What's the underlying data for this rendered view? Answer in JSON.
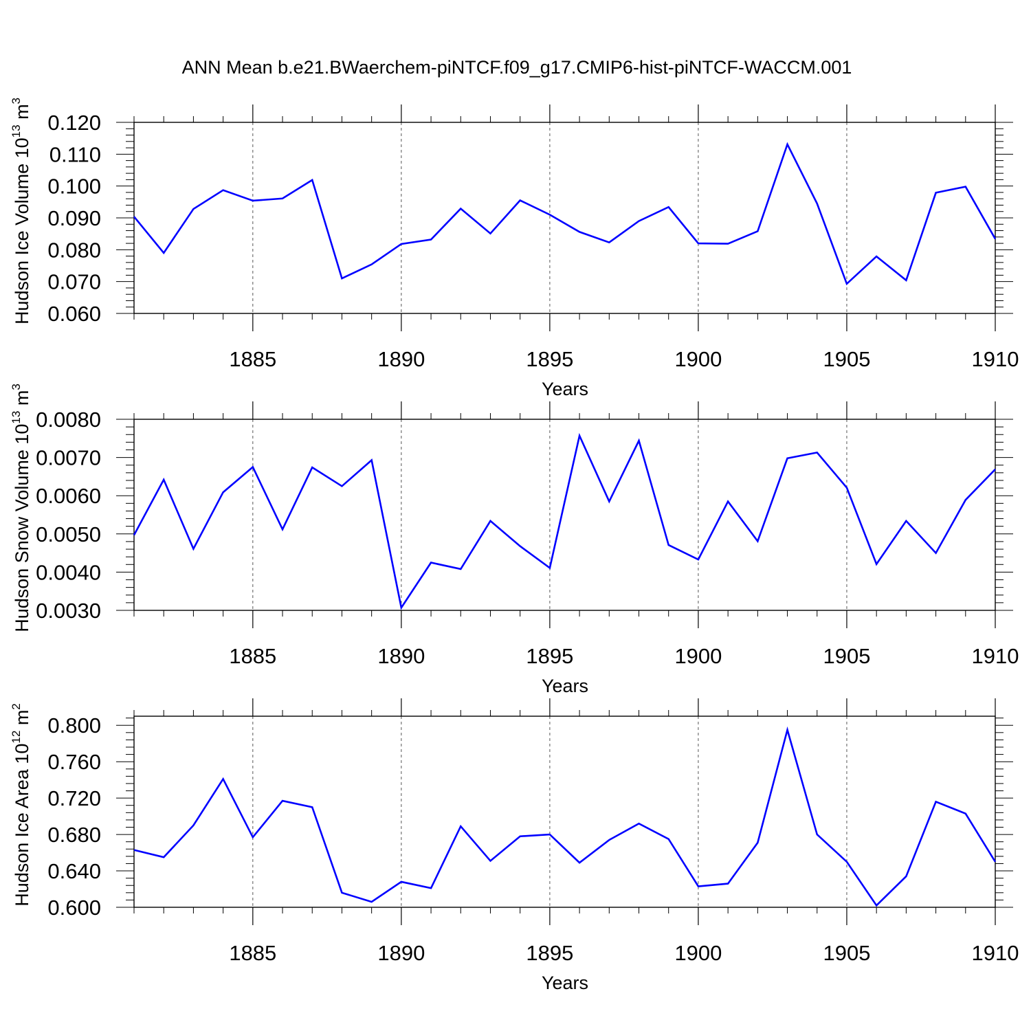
{
  "figure_title": "ANN Mean b.e21.BWaerchem-piNTCF.f09_g17.CMIP6-hist-piNTCF-WACCM.001",
  "line_color": "#0000ff",
  "chart_data": [
    {
      "type": "line",
      "ylabel": "Hudson Ice Volume",
      "ylabel_unit_base": "10",
      "ylabel_unit_exp": "13",
      "ylabel_unit_var": "m",
      "ylabel_unit_var_exp": "3",
      "xlabel": "Years",
      "xlim": [
        1881,
        1910
      ],
      "ylim": [
        0.06,
        0.12
      ],
      "yticks": [
        0.06,
        0.07,
        0.08,
        0.09,
        0.1,
        0.11,
        0.12
      ],
      "ytick_labels": [
        "0.060",
        "0.070",
        "0.080",
        "0.090",
        "0.100",
        "0.110",
        "0.120"
      ],
      "xticks": [
        1885,
        1890,
        1895,
        1900,
        1905,
        1910
      ],
      "xtick_labels": [
        "1885",
        "1890",
        "1895",
        "1900",
        "1905",
        "1910"
      ],
      "x": [
        1881,
        1882,
        1883,
        1884,
        1885,
        1886,
        1887,
        1888,
        1889,
        1890,
        1891,
        1892,
        1893,
        1894,
        1895,
        1896,
        1897,
        1898,
        1899,
        1900,
        1901,
        1902,
        1903,
        1904,
        1905,
        1906,
        1907,
        1908,
        1909,
        1910
      ],
      "values": [
        0.0904,
        0.079,
        0.0928,
        0.0987,
        0.0954,
        0.0961,
        0.1019,
        0.071,
        0.0754,
        0.0818,
        0.0832,
        0.0929,
        0.0851,
        0.0955,
        0.091,
        0.0856,
        0.0823,
        0.089,
        0.0934,
        0.082,
        0.0819,
        0.0858,
        0.1131,
        0.0945,
        0.0693,
        0.0779,
        0.0704,
        0.0979,
        0.0998,
        0.0834
      ]
    },
    {
      "type": "line",
      "ylabel": "Hudson Snow Volume",
      "ylabel_unit_base": "10",
      "ylabel_unit_exp": "13",
      "ylabel_unit_var": "m",
      "ylabel_unit_var_exp": "3",
      "xlabel": "Years",
      "xlim": [
        1881,
        1910
      ],
      "ylim": [
        0.003,
        0.008
      ],
      "yticks": [
        0.003,
        0.004,
        0.005,
        0.006,
        0.007,
        0.008
      ],
      "ytick_labels": [
        "0.0030",
        "0.0040",
        "0.0050",
        "0.0060",
        "0.0070",
        "0.0080"
      ],
      "xticks": [
        1885,
        1890,
        1895,
        1900,
        1905,
        1910
      ],
      "xtick_labels": [
        "1885",
        "1890",
        "1895",
        "1900",
        "1905",
        "1910"
      ],
      "x": [
        1881,
        1882,
        1883,
        1884,
        1885,
        1886,
        1887,
        1888,
        1889,
        1890,
        1891,
        1892,
        1893,
        1894,
        1895,
        1896,
        1897,
        1898,
        1899,
        1900,
        1901,
        1902,
        1903,
        1904,
        1905,
        1906,
        1907,
        1908,
        1909,
        1910
      ],
      "values": [
        0.00497,
        0.00642,
        0.00461,
        0.00609,
        0.00675,
        0.00512,
        0.00674,
        0.00625,
        0.00693,
        0.00307,
        0.00425,
        0.00408,
        0.00534,
        0.00468,
        0.00411,
        0.00757,
        0.00585,
        0.00744,
        0.00471,
        0.00433,
        0.00585,
        0.00481,
        0.00698,
        0.00713,
        0.00621,
        0.00421,
        0.00534,
        0.0045,
        0.00589,
        0.00669
      ]
    },
    {
      "type": "line",
      "ylabel": "Hudson Ice Area",
      "ylabel_unit_base": "10",
      "ylabel_unit_exp": "12",
      "ylabel_unit_var": "m",
      "ylabel_unit_var_exp": "2",
      "xlabel": "Years",
      "xlim": [
        1881,
        1910
      ],
      "ylim": [
        0.6,
        0.81
      ],
      "yticks": [
        0.6,
        0.64,
        0.68,
        0.72,
        0.76,
        0.8
      ],
      "ytick_labels": [
        "0.600",
        "0.640",
        "0.680",
        "0.720",
        "0.760",
        "0.800"
      ],
      "xticks": [
        1885,
        1890,
        1895,
        1900,
        1905,
        1910
      ],
      "xtick_labels": [
        "1885",
        "1890",
        "1895",
        "1900",
        "1905",
        "1910"
      ],
      "x": [
        1881,
        1882,
        1883,
        1884,
        1885,
        1886,
        1887,
        1888,
        1889,
        1890,
        1891,
        1892,
        1893,
        1894,
        1895,
        1896,
        1897,
        1898,
        1899,
        1900,
        1901,
        1902,
        1903,
        1904,
        1905,
        1906,
        1907,
        1908,
        1909,
        1910
      ],
      "values": [
        0.663,
        0.655,
        0.69,
        0.741,
        0.677,
        0.717,
        0.71,
        0.616,
        0.606,
        0.628,
        0.621,
        0.689,
        0.651,
        0.678,
        0.68,
        0.649,
        0.674,
        0.692,
        0.675,
        0.623,
        0.626,
        0.671,
        0.795,
        0.68,
        0.65,
        0.602,
        0.634,
        0.716,
        0.703,
        0.65
      ]
    }
  ]
}
